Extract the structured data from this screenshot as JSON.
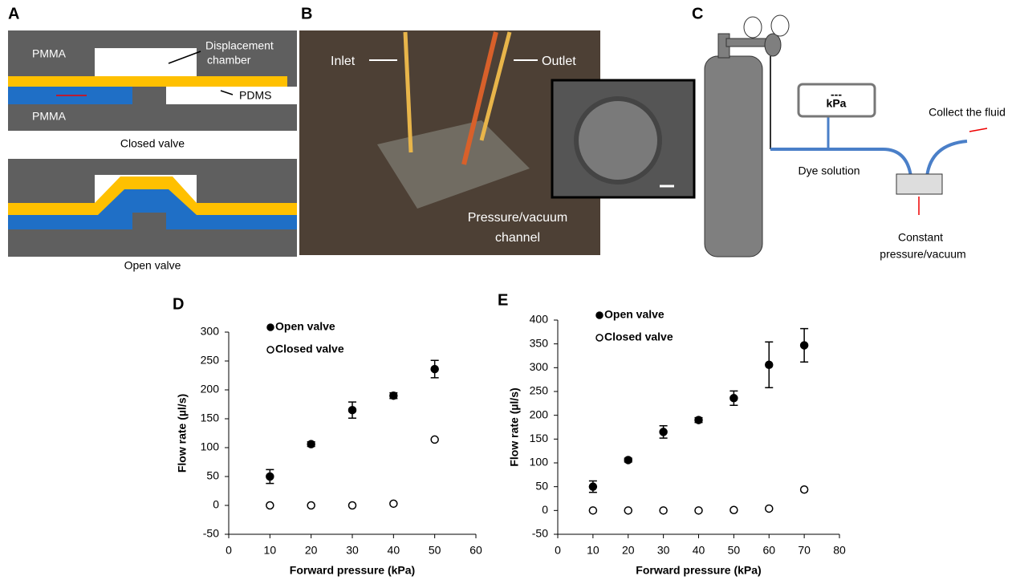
{
  "panel_a": {
    "label": "A",
    "pmma_top": "PMMA",
    "chamber_line1": "Displacement",
    "chamber_line2": "chamber",
    "pdms": "PDMS",
    "pmma_bottom": "PMMA",
    "closed_caption": "Closed valve",
    "open_caption": "Open valve"
  },
  "panel_b": {
    "label": "B",
    "inlet": "Inlet",
    "outlet": "Outlet",
    "channel_line1": "Pressure/vacuum",
    "channel_line2": "channel"
  },
  "panel_c": {
    "label": "C",
    "gauge_display": "---",
    "gauge_unit": "kPa",
    "dye": "Dye solution",
    "collect": "Collect the fluid",
    "constant_line1": "Constant",
    "constant_line2": "pressure/vacuum"
  },
  "chart_data": [
    {
      "type": "scatter",
      "panel_label": "D",
      "x_label": "Forward pressure (kPa)",
      "y_label": "Flow rate (µl/s)",
      "x": [
        10,
        20,
        30,
        40,
        50
      ],
      "series": [
        {
          "name": "Open valve",
          "color": "#000000",
          "marker": "filled",
          "values": [
            50,
            106,
            165,
            190,
            236
          ],
          "errors": [
            12,
            4,
            14,
            5,
            15
          ]
        },
        {
          "name": "Closed valve",
          "color": "#000000",
          "marker": "open",
          "values": [
            0,
            0,
            0,
            3,
            114
          ]
        }
      ],
      "xlim": [
        0,
        60
      ],
      "xticks": [
        0,
        10,
        20,
        30,
        40,
        50,
        60
      ],
      "ylim": [
        -50,
        300
      ],
      "yticks": [
        -50,
        0,
        50,
        100,
        150,
        200,
        250,
        300
      ],
      "legend": "upper left"
    },
    {
      "type": "scatter",
      "panel_label": "E",
      "x_label": "Forward pressure (kPa)",
      "y_label": "Flow rate (µl/s)",
      "x": [
        10,
        20,
        30,
        40,
        50,
        60,
        70
      ],
      "series": [
        {
          "name": "Open valve",
          "color": "#000000",
          "marker": "filled",
          "values": [
            50,
            106,
            165,
            190,
            236,
            306,
            347
          ],
          "errors": [
            12,
            4,
            13,
            5,
            15,
            48,
            35
          ]
        },
        {
          "name": "Closed valve",
          "color": "#000000",
          "marker": "open",
          "values": [
            0,
            0,
            0,
            0,
            1,
            4,
            44
          ]
        }
      ],
      "xlim": [
        0,
        80
      ],
      "xticks": [
        0,
        10,
        20,
        30,
        40,
        50,
        60,
        70,
        80
      ],
      "ylim": [
        -50,
        400
      ],
      "yticks": [
        -50,
        0,
        50,
        100,
        150,
        200,
        250,
        300,
        350,
        400
      ],
      "legend": "upper left"
    }
  ]
}
